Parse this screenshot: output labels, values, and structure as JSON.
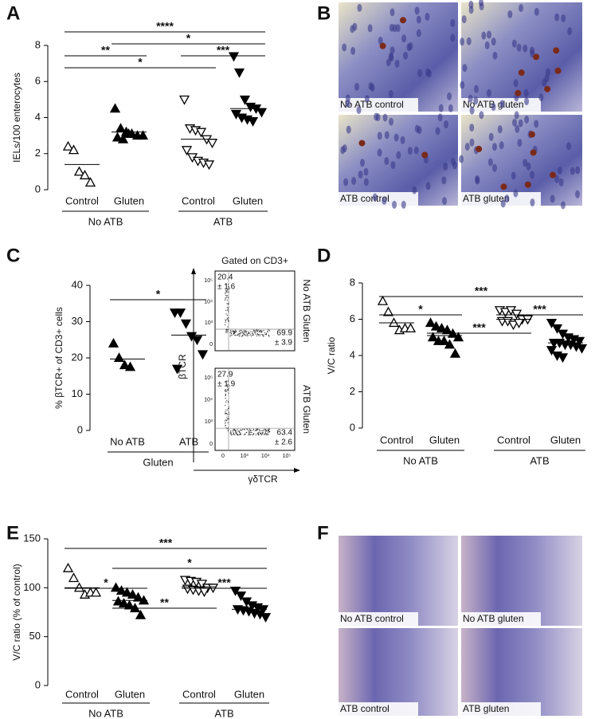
{
  "chart_data": [
    {
      "type": "dotplot",
      "panel": "A",
      "ylabel": "IELs/100 enterocytes",
      "ylim": [
        0,
        8
      ],
      "yticks": [
        0,
        2,
        4,
        6,
        8
      ],
      "categories": [
        "Control",
        "Gluten",
        "Control",
        "Gluten"
      ],
      "groups": [
        {
          "label": "No ATB",
          "span": [
            0,
            1
          ]
        },
        {
          "label": "ATB",
          "span": [
            2,
            3
          ]
        }
      ],
      "markers": [
        "triangle-up-open",
        "triangle-up",
        "triangle-down-open",
        "triangle-down"
      ],
      "points": [
        [
          2.4,
          2.2,
          1.0,
          0.8,
          0.4
        ],
        [
          4.5,
          3.4,
          3.2,
          3.1,
          3.0,
          3.0,
          2.9,
          2.8,
          3.1
        ],
        [
          5.0,
          3.4,
          3.3,
          3.2,
          2.8,
          2.6,
          2.2,
          1.8,
          1.6,
          1.5,
          1.4
        ],
        [
          7.4,
          6.5,
          5.0,
          4.6,
          4.5,
          4.3,
          4.2,
          4.0,
          3.9,
          3.8
        ]
      ],
      "means": [
        1.4,
        3.2,
        2.8,
        4.5
      ],
      "comparisons": [
        {
          "between": [
            0,
            3
          ],
          "label": "****"
        },
        {
          "between": [
            1,
            3
          ],
          "label": "*"
        },
        {
          "between": [
            2,
            3
          ],
          "label": "***"
        },
        {
          "between": [
            0,
            2
          ],
          "label": "*"
        },
        {
          "between": [
            0,
            1
          ],
          "label": "**"
        }
      ]
    },
    {
      "type": "dotplot",
      "panel": "C",
      "ylabel": "% βTCR+ of CD3+ cells",
      "ylim": [
        0,
        40
      ],
      "yticks": [
        0,
        10,
        20,
        30,
        40
      ],
      "categories": [
        "No ATB",
        "ATB"
      ],
      "groups": [
        {
          "label": "Gluten",
          "span": [
            0,
            1
          ]
        }
      ],
      "markers": [
        "triangle-up",
        "triangle-down"
      ],
      "points": [
        [
          24,
          20,
          18,
          17.5
        ],
        [
          32.5,
          32.5,
          29.5,
          26,
          25,
          21,
          17
        ]
      ],
      "means": [
        19.7,
        26.3
      ],
      "comparisons": [
        {
          "between": [
            0,
            1
          ],
          "label": "*"
        }
      ]
    },
    {
      "type": "dotplot",
      "panel": "D",
      "ylabel": "V/C ratio",
      "ylim": [
        0,
        8
      ],
      "yticks": [
        0,
        2,
        4,
        6,
        8
      ],
      "categories": [
        "Control",
        "Gluten",
        "Control",
        "Gluten"
      ],
      "groups": [
        {
          "label": "No ATB",
          "span": [
            0,
            1
          ]
        },
        {
          "label": "ATB",
          "span": [
            2,
            3
          ]
        }
      ],
      "markers": [
        "triangle-up-open",
        "triangle-up",
        "triangle-down-open",
        "triangle-down"
      ],
      "points": [
        [
          7.0,
          6.4,
          5.8,
          5.4,
          5.5,
          5.5
        ],
        [
          5.8,
          5.6,
          5.5,
          5.4,
          5.2,
          5.0,
          5.0,
          4.8,
          4.8,
          4.6,
          4.1
        ],
        [
          6.5,
          6.4,
          6.5,
          6.3,
          6.0,
          6.0,
          5.9,
          5.9,
          5.7,
          5.8
        ],
        [
          5.8,
          5.5,
          5.2,
          5.0,
          4.9,
          4.8,
          4.7,
          4.7,
          4.6,
          4.6,
          4.5,
          4.4,
          4.3,
          4.0,
          3.9
        ]
      ],
      "means": [
        5.8,
        5.1,
        6.0,
        4.7
      ],
      "comparisons": [
        {
          "between": [
            0,
            3
          ],
          "label": "***"
        },
        {
          "between": [
            0,
            1
          ],
          "label": "*"
        },
        {
          "between": [
            2,
            3
          ],
          "label": "***"
        },
        {
          "between": [
            1,
            2
          ],
          "label": "***"
        }
      ]
    },
    {
      "type": "dotplot",
      "panel": "E",
      "ylabel": "V/C ratio (% of control)",
      "ylim": [
        0,
        150
      ],
      "yticks": [
        0,
        50,
        100,
        150
      ],
      "categories": [
        "Control",
        "Gluten",
        "Control",
        "Gluten"
      ],
      "groups": [
        {
          "label": "No ATB",
          "span": [
            0,
            1
          ]
        },
        {
          "label": "ATB",
          "span": [
            2,
            3
          ]
        }
      ],
      "markers": [
        "triangle-up-open",
        "triangle-up",
        "triangle-down-open",
        "triangle-down"
      ],
      "points": [
        [
          120,
          110,
          100,
          93,
          95,
          95
        ],
        [
          100,
          97,
          95,
          93,
          90,
          87,
          86,
          84,
          82,
          79,
          72
        ],
        [
          108,
          107,
          106,
          104,
          100,
          100,
          99,
          98,
          97,
          96
        ],
        [
          97,
          92,
          86,
          82,
          80,
          78,
          78,
          77,
          76,
          74,
          73,
          70
        ]
      ],
      "means": [
        100,
        87,
        101,
        78
      ],
      "comparisons": [
        {
          "between": [
            0,
            3
          ],
          "label": "***"
        },
        {
          "between": [
            1,
            3
          ],
          "label": "*"
        },
        {
          "between": [
            0,
            1
          ],
          "label": "*"
        },
        {
          "between": [
            2,
            3
          ],
          "label": "***"
        },
        {
          "between": [
            1,
            2
          ],
          "label": "**"
        }
      ]
    }
  ],
  "image_panels": [
    {
      "panel": "B",
      "captions": [
        "No ATB control",
        "No ATB gluten",
        "ATB control",
        "ATB gluten"
      ]
    },
    {
      "panel": "F",
      "captions": [
        "No ATB control",
        "No ATB gluten",
        "ATB control",
        "ATB gluten"
      ]
    }
  ],
  "flow": {
    "title": "Gated on CD3+",
    "ylabel": "βTCR",
    "xlabel": "γδTCR",
    "ticks": [
      "0",
      "10³",
      "10⁴",
      "10⁵"
    ],
    "plots": [
      {
        "label": "No ATB Gluten",
        "upper_left": [
          "20.4",
          "± 1.6"
        ],
        "lower_right": [
          "69.9",
          "± 3.9"
        ]
      },
      {
        "label": "ATB Gluten",
        "upper_left": [
          "27.9",
          "± 1.9"
        ],
        "lower_right": [
          "63.4",
          "± 2.6"
        ]
      }
    ]
  }
}
